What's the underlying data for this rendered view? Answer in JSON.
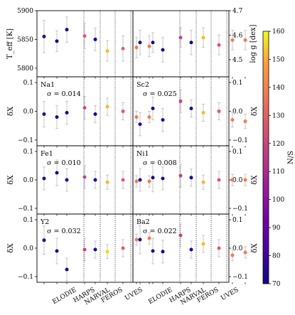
{
  "chart_data": {
    "type": "scatter",
    "instruments": [
      "ELODIE",
      "HARPS",
      "NARVAL",
      "FEROS",
      "UVES"
    ],
    "x_categories_per_panel": [
      "ELODIE",
      "ELODIE",
      "ELODIE",
      "ELODIE",
      "HARPS",
      "NARVAL",
      "FEROS",
      "UVES",
      "UVES"
    ],
    "colorbar": {
      "label": "N/S",
      "min": 70,
      "max": 160,
      "ticks": [
        "70",
        "80",
        "90",
        "100",
        "110",
        "120",
        "130",
        "140",
        "150",
        "160"
      ],
      "colormap": "plasma"
    },
    "rows": [
      {
        "left": {
          "ylabel": "T_eff [K]",
          "ylim": [
            5785,
            5900
          ],
          "ticks": [
            "5800",
            "5850",
            "5900"
          ],
          "points": [
            {
              "y": 5855,
              "err": 28,
              "c": 75
            },
            {
              "y": 5847,
              "err": 18,
              "c": 72
            },
            {
              "y": 5867,
              "err": 22,
              "c": 72
            },
            {
              "y": 5856,
              "err": 22,
              "c": 125
            },
            {
              "y": 5850,
              "err": 20,
              "c": 72
            },
            {
              "y": 5830,
              "err": 18,
              "c": 152
            },
            {
              "y": 5834,
              "err": 22,
              "c": 130
            },
            {
              "y": 5836,
              "err": 18,
              "c": 138
            },
            {
              "y": 5838,
              "err": 18,
              "c": 138
            }
          ]
        },
        "right": {
          "ylabel": "log g [dex]",
          "ylim": [
            4.43,
            4.7
          ],
          "ticks": [
            "4.5",
            "4.6",
            "4.7"
          ],
          "tick_values": [
            4.5,
            4.6,
            4.7
          ],
          "points": [
            {
              "y": 4.57,
              "err": 0.05,
              "c": 75
            },
            {
              "y": 4.57,
              "err": 0.04,
              "c": 72
            },
            {
              "y": 4.54,
              "err": 0.05,
              "c": 72
            },
            {
              "y": 4.59,
              "err": 0.04,
              "c": 118
            },
            {
              "y": 4.57,
              "err": 0.05,
              "c": 72
            },
            {
              "y": 4.59,
              "err": 0.04,
              "c": 152
            },
            {
              "y": 4.56,
              "err": 0.04,
              "c": 125
            },
            {
              "y": 4.58,
              "err": 0.04,
              "c": 138
            },
            {
              "y": 4.58,
              "err": 0.04,
              "c": 138
            }
          ]
        }
      },
      {
        "left": {
          "element": "Na1",
          "sigma": "σ = 0.014",
          "ylabel": "δX",
          "ylim": [
            -0.12,
            0.12
          ],
          "ticks": [
            "−0.1",
            "0.0",
            "0.1"
          ],
          "tick_values": [
            -0.1,
            0.0,
            0.1
          ],
          "points": [
            {
              "y": -0.01,
              "err": 0.045,
              "c": 75
            },
            {
              "y": -0.02,
              "err": 0.04,
              "c": 72
            },
            {
              "y": -0.005,
              "err": 0.04,
              "c": 72
            },
            {
              "y": 0.012,
              "err": 0.04,
              "c": 122
            },
            {
              "y": -0.01,
              "err": 0.03,
              "c": 72
            },
            {
              "y": 0.016,
              "err": 0.03,
              "c": 152
            },
            {
              "y": 0.0,
              "err": 0.03,
              "c": 128
            },
            {
              "y": -0.02,
              "err": 0.02,
              "c": 138
            },
            {
              "y": -0.02,
              "err": 0.02,
              "c": 138
            }
          ]
        },
        "right": {
          "element": "Sc2",
          "sigma": "σ = 0.025",
          "ylabel": "δX",
          "ylim": [
            -0.12,
            0.12
          ],
          "ticks": [
            "−0.1",
            "0.0",
            "0.1"
          ],
          "tick_values": [
            -0.1,
            0.0,
            0.1
          ],
          "points": [
            {
              "y": -0.045,
              "err": 0.04,
              "c": 75
            },
            {
              "y": 0.01,
              "err": 0.04,
              "c": 72
            },
            {
              "y": -0.03,
              "err": 0.04,
              "c": 72
            },
            {
              "y": 0.035,
              "err": 0.04,
              "c": 120
            },
            {
              "y": 0.01,
              "err": 0.03,
              "c": 72
            },
            {
              "y": -0.005,
              "err": 0.03,
              "c": 152
            },
            {
              "y": 0.0,
              "err": 0.03,
              "c": 128
            },
            {
              "y": -0.03,
              "err": 0.025,
              "c": 138
            },
            {
              "y": -0.035,
              "err": 0.025,
              "c": 138
            }
          ]
        }
      },
      {
        "left": {
          "element": "Fe1",
          "sigma": "σ = 0.010",
          "ylabel": "δX",
          "ylim": [
            -0.12,
            0.12
          ],
          "ticks": [
            "−0.1",
            "0.0",
            "0.1"
          ],
          "tick_values": [
            -0.1,
            0.0,
            0.1
          ],
          "points": [
            {
              "y": 0.005,
              "err": 0.04,
              "c": 75
            },
            {
              "y": 0.025,
              "err": 0.045,
              "c": 72
            },
            {
              "y": 0.0,
              "err": 0.04,
              "c": 72
            },
            {
              "y": 0.01,
              "err": 0.04,
              "c": 118
            },
            {
              "y": 0.0,
              "err": 0.03,
              "c": 72
            },
            {
              "y": -0.008,
              "err": 0.025,
              "c": 152
            },
            {
              "y": 0.0,
              "err": 0.03,
              "c": 128
            },
            {
              "y": -0.005,
              "err": 0.02,
              "c": 138
            },
            {
              "y": -0.005,
              "err": 0.02,
              "c": 138
            }
          ]
        },
        "right": {
          "element": "Ni1",
          "sigma": "σ = 0.008",
          "ylabel": "δX",
          "ylim": [
            -0.12,
            0.12
          ],
          "ticks": [
            "−0.1",
            "0.0",
            "0.1"
          ],
          "tick_values": [
            -0.1,
            0.0,
            0.1
          ],
          "points": [
            {
              "y": 0.0,
              "err": 0.04,
              "c": 75
            },
            {
              "y": 0.008,
              "err": 0.05,
              "c": 72
            },
            {
              "y": 0.005,
              "err": 0.04,
              "c": 72
            },
            {
              "y": 0.015,
              "err": 0.04,
              "c": 118
            },
            {
              "y": 0.008,
              "err": 0.03,
              "c": 72
            },
            {
              "y": -0.008,
              "err": 0.025,
              "c": 152
            },
            {
              "y": 0.0,
              "err": 0.03,
              "c": 128
            },
            {
              "y": 0.0,
              "err": 0.02,
              "c": 138
            },
            {
              "y": 0.0,
              "err": 0.02,
              "c": 138
            }
          ]
        }
      },
      {
        "left": {
          "element": "Y2",
          "sigma": "σ = 0.032",
          "ylabel": "δX",
          "ylim": [
            -0.12,
            0.12
          ],
          "ticks": [
            "−0.1",
            "0.0",
            "0.1"
          ],
          "tick_values": [
            -0.1,
            0.0,
            0.1
          ],
          "points": [
            {
              "y": 0.028,
              "err": 0.05,
              "c": 75
            },
            {
              "y": -0.01,
              "err": 0.045,
              "c": 72
            },
            {
              "y": -0.075,
              "err": 0.04,
              "c": 72
            },
            {
              "y": -0.005,
              "err": 0.04,
              "c": 118
            },
            {
              "y": -0.005,
              "err": 0.03,
              "c": 72
            },
            {
              "y": -0.012,
              "err": 0.025,
              "c": 155
            },
            {
              "y": 0.0,
              "err": 0.03,
              "c": 128
            },
            {
              "y": 0.03,
              "err": 0.02,
              "c": 138
            },
            {
              "y": 0.035,
              "err": 0.02,
              "c": 138
            }
          ]
        },
        "right": {
          "element": "Ba2",
          "sigma": "σ = 0.022",
          "ylabel": "δX",
          "ylim": [
            -0.12,
            0.12
          ],
          "ticks": [
            "−0.1",
            "0.0",
            "0.1"
          ],
          "tick_values": [
            -0.1,
            0.0,
            0.1
          ],
          "points": [
            {
              "y": 0.03,
              "err": 0.05,
              "c": 75
            },
            {
              "y": -0.01,
              "err": 0.045,
              "c": 72
            },
            {
              "y": -0.012,
              "err": 0.04,
              "c": 72
            },
            {
              "y": 0.045,
              "err": 0.04,
              "c": 118
            },
            {
              "y": -0.005,
              "err": 0.03,
              "c": 72
            },
            {
              "y": 0.015,
              "err": 0.03,
              "c": 152
            },
            {
              "y": 0.0,
              "err": 0.03,
              "c": 128
            },
            {
              "y": -0.025,
              "err": 0.02,
              "c": 138
            },
            {
              "y": -0.015,
              "err": 0.02,
              "c": 138
            }
          ]
        }
      }
    ]
  }
}
